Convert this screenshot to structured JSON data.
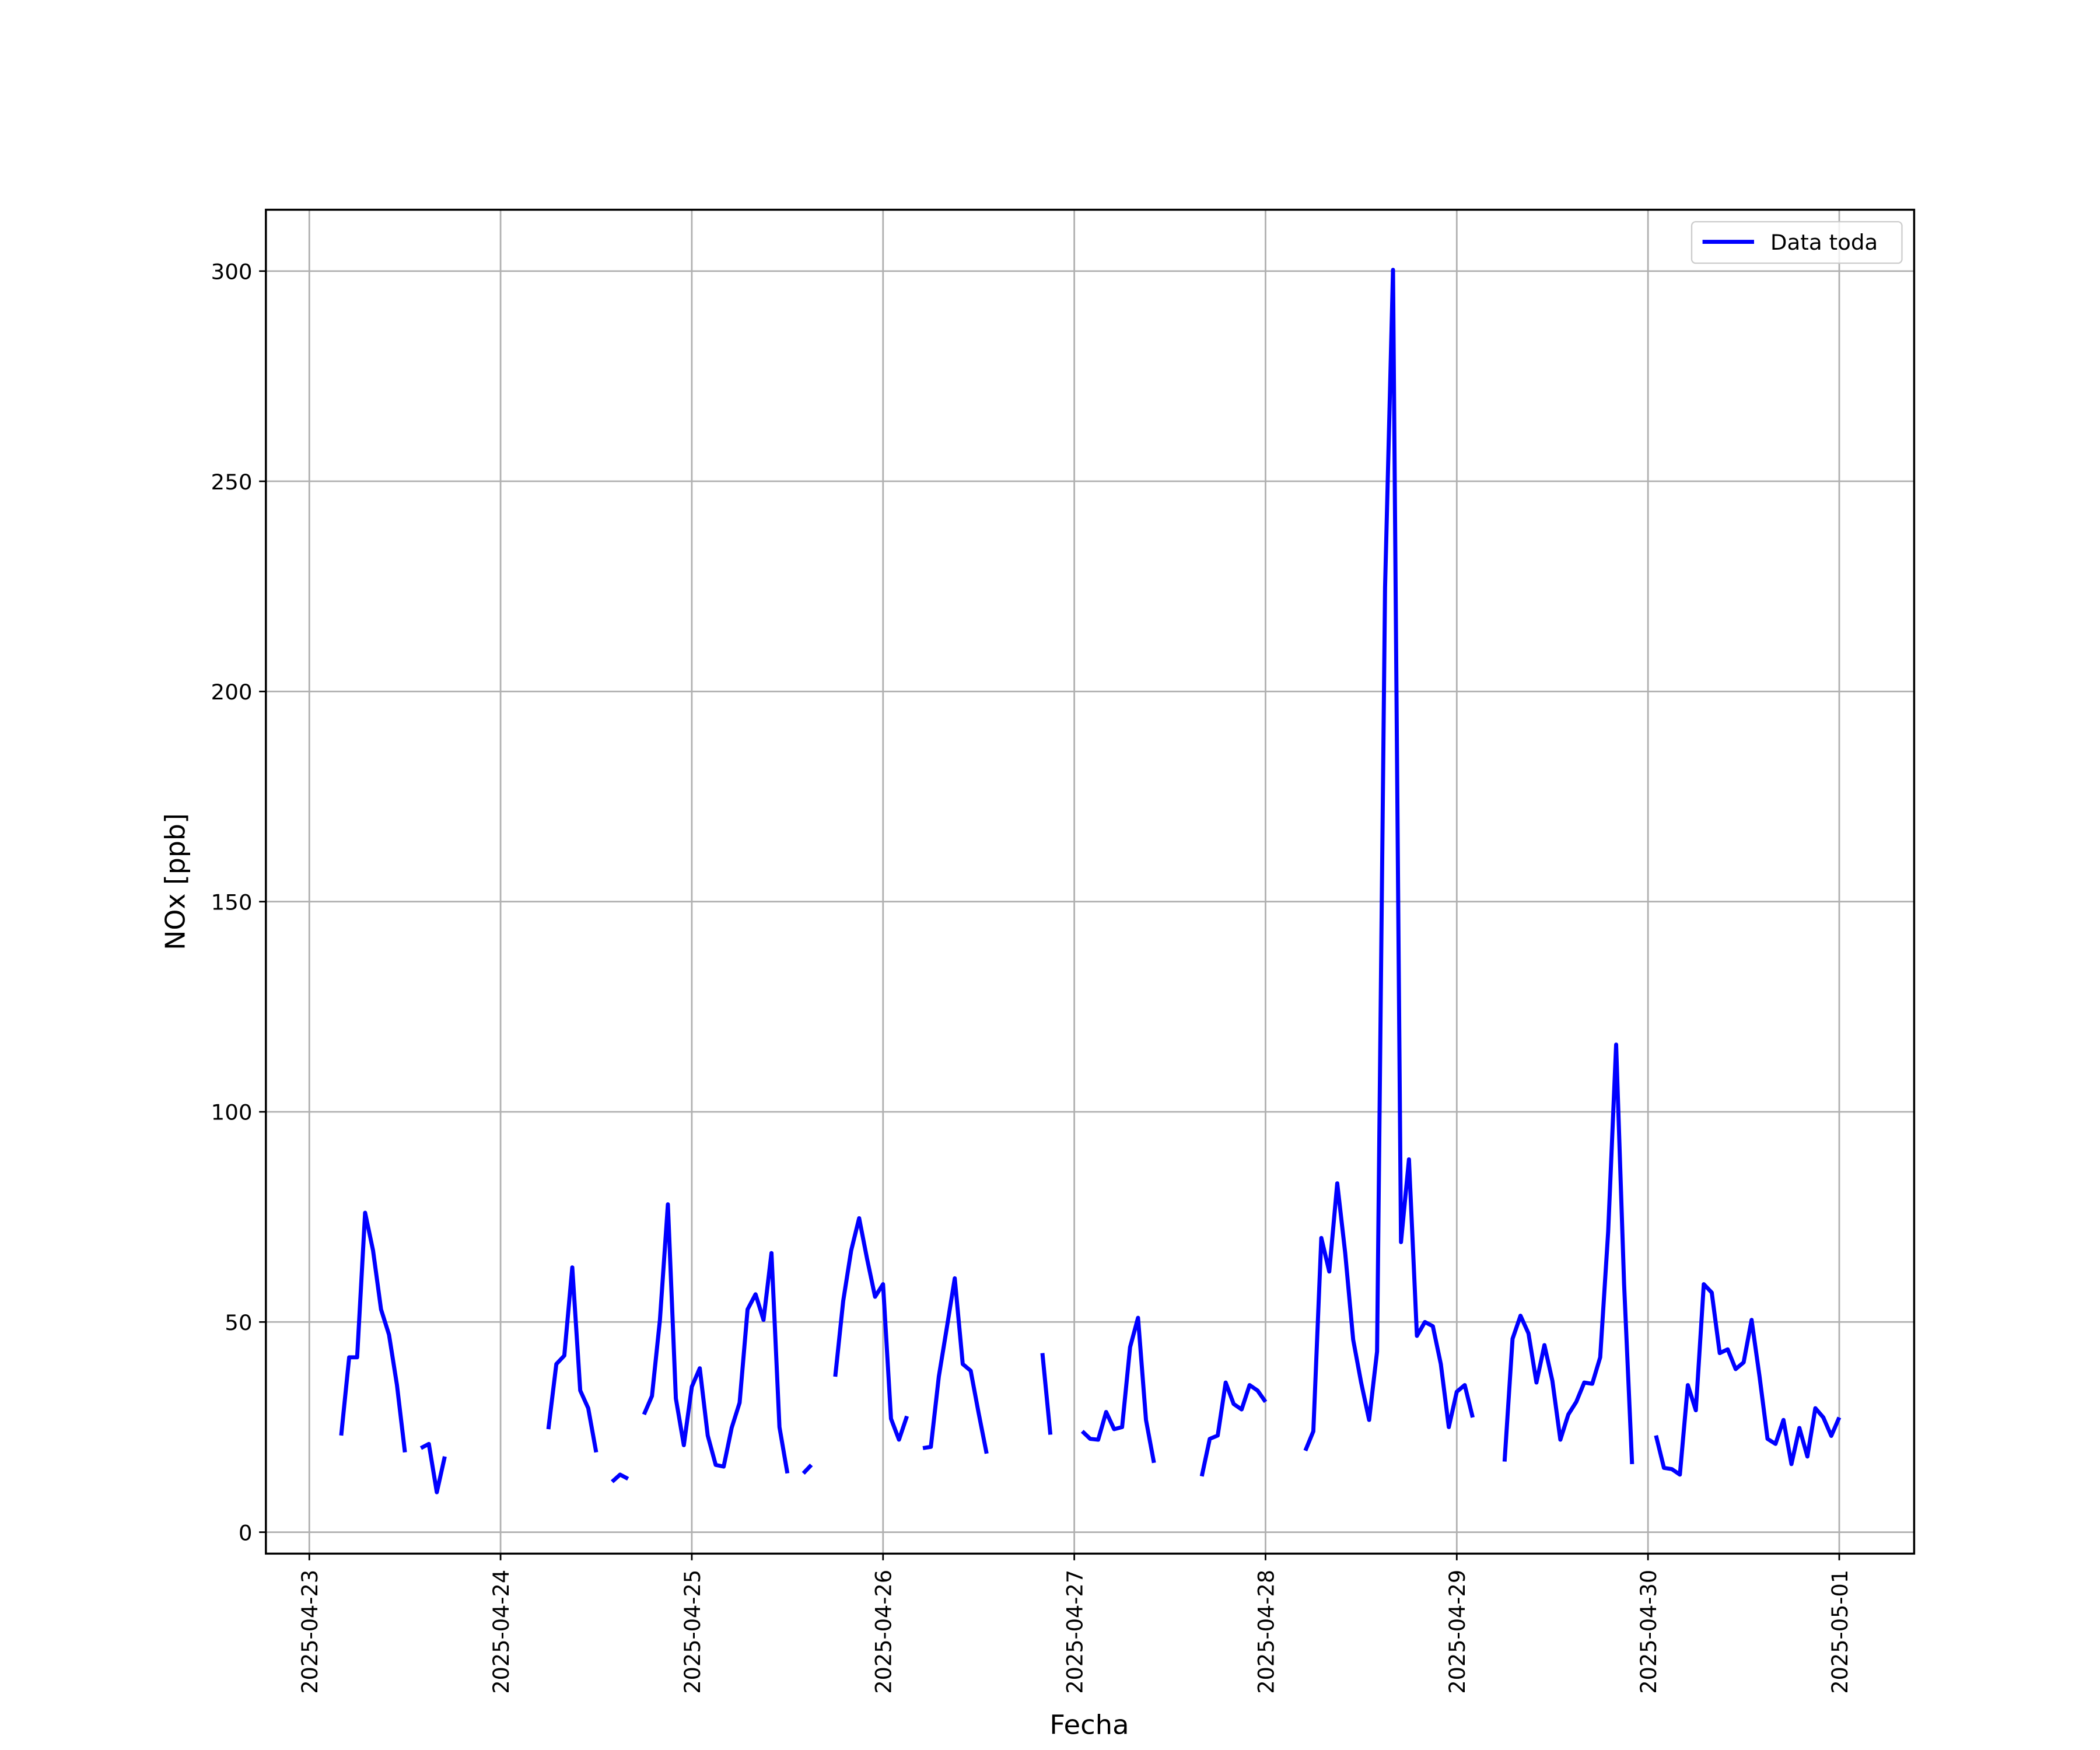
{
  "chart_data": {
    "type": "line",
    "x_label": "Fecha",
    "y_label": "NOx [ppb]",
    "x": [
      "2025-04-23 04:00",
      "2025-04-23 05:00",
      "2025-04-23 06:00",
      "2025-04-23 07:00",
      "2025-04-23 08:00",
      "2025-04-23 09:00",
      "2025-04-23 10:00",
      "2025-04-23 11:00",
      "2025-04-23 12:00",
      "2025-04-23 13:00",
      "2025-04-23 14:00",
      "2025-04-23 15:00",
      "2025-04-23 16:00",
      "2025-04-23 17:00",
      "2025-04-23 18:00",
      "2025-04-23 19:00",
      "2025-04-23 20:00",
      "2025-04-23 21:00",
      "2025-04-23 22:00",
      "2025-04-23 23:00",
      "2025-04-24 00:00",
      "2025-04-24 01:00",
      "2025-04-24 02:00",
      "2025-04-24 03:00",
      "2025-04-24 04:00",
      "2025-04-24 05:00",
      "2025-04-24 06:00",
      "2025-04-24 07:00",
      "2025-04-24 08:00",
      "2025-04-24 09:00",
      "2025-04-24 10:00",
      "2025-04-24 11:00",
      "2025-04-24 12:00",
      "2025-04-24 13:00",
      "2025-04-24 14:00",
      "2025-04-24 15:00",
      "2025-04-24 16:00",
      "2025-04-24 17:00",
      "2025-04-24 18:00",
      "2025-04-24 19:00",
      "2025-04-24 20:00",
      "2025-04-24 21:00",
      "2025-04-24 22:00",
      "2025-04-24 23:00",
      "2025-04-25 00:00",
      "2025-04-25 01:00",
      "2025-04-25 02:00",
      "2025-04-25 03:00",
      "2025-04-25 04:00",
      "2025-04-25 05:00",
      "2025-04-25 06:00",
      "2025-04-25 07:00",
      "2025-04-25 08:00",
      "2025-04-25 09:00",
      "2025-04-25 10:00",
      "2025-04-25 11:00",
      "2025-04-25 12:00",
      "2025-04-25 13:00",
      "2025-04-25 14:00",
      "2025-04-25 15:00",
      "2025-04-25 16:00",
      "2025-04-25 17:00",
      "2025-04-25 18:00",
      "2025-04-25 19:00",
      "2025-04-25 20:00",
      "2025-04-25 21:00",
      "2025-04-25 22:00",
      "2025-04-25 23:00",
      "2025-04-26 00:00",
      "2025-04-26 01:00",
      "2025-04-26 02:00",
      "2025-04-26 03:00",
      "2025-04-26 04:00",
      "2025-04-26 05:00",
      "2025-04-26 06:00",
      "2025-04-26 07:00",
      "2025-04-26 08:00",
      "2025-04-26 09:00",
      "2025-04-26 10:00",
      "2025-04-26 11:00",
      "2025-04-26 12:00",
      "2025-04-26 13:00",
      "2025-04-26 14:00",
      "2025-04-26 15:00",
      "2025-04-26 16:00",
      "2025-04-26 17:00",
      "2025-04-26 18:00",
      "2025-04-26 19:00",
      "2025-04-26 20:00",
      "2025-04-26 21:00",
      "2025-04-26 22:00",
      "2025-04-26 23:00",
      "2025-04-27 00:00",
      "2025-04-27 01:00",
      "2025-04-27 02:00",
      "2025-04-27 03:00",
      "2025-04-27 04:00",
      "2025-04-27 05:00",
      "2025-04-27 06:00",
      "2025-04-27 07:00",
      "2025-04-27 08:00",
      "2025-04-27 09:00",
      "2025-04-27 10:00",
      "2025-04-27 11:00",
      "2025-04-27 12:00",
      "2025-04-27 13:00",
      "2025-04-27 14:00",
      "2025-04-27 15:00",
      "2025-04-27 16:00",
      "2025-04-27 17:00",
      "2025-04-27 18:00",
      "2025-04-27 19:00",
      "2025-04-27 20:00",
      "2025-04-27 21:00",
      "2025-04-27 22:00",
      "2025-04-27 23:00",
      "2025-04-28 00:00",
      "2025-04-28 01:00",
      "2025-04-28 02:00",
      "2025-04-28 03:00",
      "2025-04-28 04:00",
      "2025-04-28 05:00",
      "2025-04-28 06:00",
      "2025-04-28 07:00",
      "2025-04-28 08:00",
      "2025-04-28 09:00",
      "2025-04-28 10:00",
      "2025-04-28 11:00",
      "2025-04-28 12:00",
      "2025-04-28 13:00",
      "2025-04-28 14:00",
      "2025-04-28 15:00",
      "2025-04-28 16:00",
      "2025-04-28 17:00",
      "2025-04-28 18:00",
      "2025-04-28 19:00",
      "2025-04-28 20:00",
      "2025-04-28 21:00",
      "2025-04-28 22:00",
      "2025-04-28 23:00",
      "2025-04-29 00:00",
      "2025-04-29 01:00",
      "2025-04-29 02:00",
      "2025-04-29 03:00",
      "2025-04-29 04:00",
      "2025-04-29 05:00",
      "2025-04-29 06:00",
      "2025-04-29 07:00",
      "2025-04-29 08:00",
      "2025-04-29 09:00",
      "2025-04-29 10:00",
      "2025-04-29 11:00",
      "2025-04-29 12:00",
      "2025-04-29 13:00",
      "2025-04-29 14:00",
      "2025-04-29 15:00",
      "2025-04-29 16:00",
      "2025-04-29 17:00",
      "2025-04-29 18:00",
      "2025-04-29 19:00",
      "2025-04-29 20:00",
      "2025-04-29 21:00",
      "2025-04-29 22:00",
      "2025-04-29 23:00",
      "2025-04-30 00:00",
      "2025-04-30 01:00",
      "2025-04-30 02:00",
      "2025-04-30 03:00",
      "2025-04-30 04:00",
      "2025-04-30 05:00",
      "2025-04-30 06:00",
      "2025-04-30 07:00",
      "2025-04-30 08:00",
      "2025-04-30 09:00",
      "2025-04-30 10:00",
      "2025-04-30 11:00",
      "2025-04-30 12:00",
      "2025-04-30 13:00",
      "2025-04-30 14:00",
      "2025-04-30 15:00",
      "2025-04-30 16:00",
      "2025-04-30 17:00",
      "2025-04-30 18:00",
      "2025-04-30 19:00",
      "2025-04-30 20:00",
      "2025-04-30 21:00",
      "2025-04-30 22:00",
      "2025-04-30 23:00",
      "2025-05-01 00:00"
    ],
    "series": [
      {
        "name": "Data toda",
        "color": "#0000ff",
        "values": [
          23,
          41.6,
          41.6,
          76,
          67,
          53,
          47,
          35,
          19,
          null,
          20,
          21,
          9.5,
          18,
          null,
          null,
          null,
          null,
          null,
          null,
          null,
          null,
          null,
          null,
          null,
          null,
          24.5,
          40,
          42,
          63,
          33.7,
          29.5,
          19,
          null,
          12,
          13.7,
          12.7,
          null,
          28,
          32.4,
          50.5,
          78,
          31.8,
          20.7,
          34.6,
          39,
          23,
          16,
          15.6,
          24.8,
          30.8,
          53,
          56.6,
          50.5,
          66.4,
          25,
          14,
          null,
          14,
          16,
          null,
          null,
          37,
          55,
          67,
          74.7,
          65,
          56,
          59,
          27,
          22,
          27.6,
          null,
          20,
          20.3,
          37,
          48.6,
          60.4,
          40,
          38.4,
          28.3,
          18.7,
          null,
          null,
          null,
          null,
          null,
          null,
          42.6,
          23.2,
          null,
          null,
          null,
          24,
          22.2,
          22,
          28.6,
          24.5,
          25,
          44,
          51,
          26.7,
          16.5,
          null,
          null,
          null,
          null,
          null,
          13.3,
          22.2,
          23,
          35.6,
          30.5,
          29.2,
          35,
          33.7,
          31,
          null,
          null,
          null,
          null,
          19.4,
          24,
          70,
          62,
          83,
          66.4,
          45.8,
          35.6,
          26.7,
          43,
          224.7,
          300.3,
          69,
          88.7,
          46.7,
          50,
          49,
          40,
          25,
          33.4,
          35,
          27.3,
          null,
          null,
          null,
          16.8,
          46,
          51.5,
          47.3,
          35.6,
          44.5,
          36,
          22,
          28,
          31,
          35.6,
          35.3,
          41.6,
          71.5,
          116,
          59,
          16.2,
          null,
          null,
          23,
          15.3,
          15,
          13.7,
          35,
          29,
          59,
          57,
          42.6,
          43.5,
          38.8,
          40.4,
          50.5,
          37,
          22.2,
          21,
          26.7,
          16.2,
          24.8,
          18,
          29.5,
          27.3,
          22.9,
          27.3
        ]
      }
    ],
    "xlim": [
      "2025-04-22 18:33",
      "2025-05-01 09:24"
    ],
    "xticks": [
      "2025-04-23",
      "2025-04-24",
      "2025-04-25",
      "2025-04-26",
      "2025-04-27",
      "2025-04-28",
      "2025-04-29",
      "2025-04-30",
      "2025-05-01"
    ],
    "ylim": [
      -5.1,
      314.6
    ],
    "yticks": [
      0,
      50,
      100,
      150,
      200,
      250,
      300
    ],
    "grid": true,
    "legend": "upper right"
  }
}
